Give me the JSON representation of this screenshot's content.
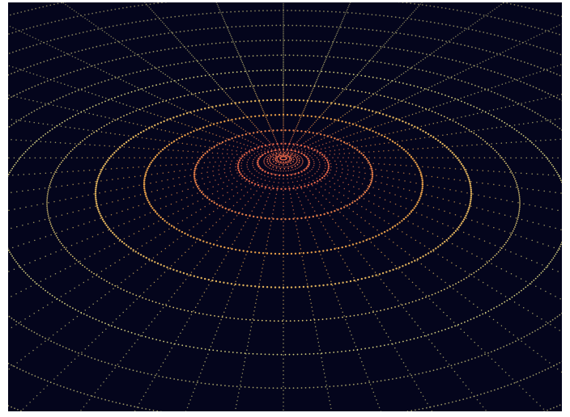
{
  "scene": {
    "subject": "dotted-polar-grid",
    "background_color": "#04051c",
    "colors": {
      "center": "#f06a4a",
      "mid": "#f0a84a",
      "outer": "#e2dc86",
      "rim": "#a09a6a"
    }
  }
}
